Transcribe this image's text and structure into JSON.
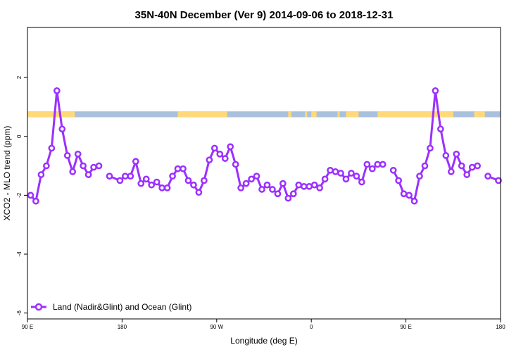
{
  "chart_data": {
    "type": "line",
    "title": "35N-40N December (Ver 9)   2014-09-06 to 2018-12-31",
    "xlabel": "Longitude (deg E)",
    "ylabel": "XCO2 - MLO trend (ppm)",
    "xlim": [
      90,
      540
    ],
    "ylim": [
      -6.2,
      3.7
    ],
    "x_ticks": [
      {
        "value": 90,
        "label": "90 E"
      },
      {
        "value": 180,
        "label": "180"
      },
      {
        "value": 270,
        "label": "90 W"
      },
      {
        "value": 360,
        "label": "0"
      },
      {
        "value": 450,
        "label": "90 E"
      },
      {
        "value": 540,
        "label": "180"
      }
    ],
    "y_ticks": [
      {
        "value": 2,
        "label": "2"
      },
      {
        "value": 0,
        "label": "0"
      },
      {
        "value": -2,
        "label": "-2"
      },
      {
        "value": -4,
        "label": "-4"
      },
      {
        "value": -6,
        "label": "-6"
      }
    ],
    "legend": {
      "position": "bottom-left"
    },
    "series": [
      {
        "name": "Land (Nadir&Glint) and Ocean (Glint)",
        "color": "#9b30ff",
        "segments": [
          [
            [
              93,
              -2.0
            ],
            [
              98,
              -2.2
            ],
            [
              103,
              -1.3
            ],
            [
              108,
              -1.0
            ],
            [
              113,
              -0.4
            ],
            [
              118,
              1.55
            ],
            [
              123,
              0.25
            ],
            [
              128,
              -0.65
            ],
            [
              133,
              -1.2
            ],
            [
              138,
              -0.6
            ],
            [
              143,
              -1.0
            ],
            [
              148,
              -1.3
            ],
            [
              153,
              -1.05
            ],
            [
              158,
              -1.0
            ]
          ],
          [
            [
              168,
              -1.35
            ],
            [
              178,
              -1.5
            ],
            [
              183,
              -1.35
            ],
            [
              188,
              -1.35
            ],
            [
              193,
              -0.85
            ],
            [
              198,
              -1.6
            ],
            [
              203,
              -1.45
            ],
            [
              208,
              -1.65
            ],
            [
              213,
              -1.55
            ],
            [
              218,
              -1.75
            ],
            [
              223,
              -1.75
            ],
            [
              228,
              -1.35
            ],
            [
              233,
              -1.1
            ],
            [
              238,
              -1.1
            ],
            [
              243,
              -1.5
            ],
            [
              248,
              -1.65
            ],
            [
              253,
              -1.9
            ],
            [
              258,
              -1.5
            ],
            [
              263,
              -0.8
            ],
            [
              268,
              -0.4
            ],
            [
              273,
              -0.6
            ],
            [
              278,
              -0.75
            ],
            [
              283,
              -0.35
            ],
            [
              288,
              -0.95
            ],
            [
              293,
              -1.75
            ],
            [
              298,
              -1.6
            ],
            [
              303,
              -1.45
            ],
            [
              308,
              -1.35
            ],
            [
              313,
              -1.8
            ],
            [
              318,
              -1.65
            ],
            [
              323,
              -1.8
            ],
            [
              328,
              -1.95
            ],
            [
              333,
              -1.6
            ],
            [
              338,
              -2.1
            ],
            [
              343,
              -1.95
            ],
            [
              348,
              -1.65
            ],
            [
              353,
              -1.7
            ],
            [
              358,
              -1.7
            ],
            [
              363,
              -1.65
            ],
            [
              368,
              -1.75
            ],
            [
              373,
              -1.45
            ],
            [
              378,
              -1.15
            ],
            [
              383,
              -1.2
            ],
            [
              388,
              -1.25
            ],
            [
              393,
              -1.45
            ],
            [
              398,
              -1.25
            ],
            [
              403,
              -1.35
            ],
            [
              408,
              -1.55
            ],
            [
              413,
              -0.95
            ],
            [
              418,
              -1.1
            ],
            [
              423,
              -0.95
            ],
            [
              428,
              -0.95
            ]
          ],
          [
            [
              438,
              -1.15
            ],
            [
              443,
              -1.5
            ],
            [
              448,
              -1.95
            ],
            [
              453,
              -2.0
            ],
            [
              458,
              -2.2
            ],
            [
              463,
              -1.35
            ],
            [
              468,
              -1.0
            ],
            [
              473,
              -0.4
            ],
            [
              478,
              1.55
            ],
            [
              483,
              0.25
            ],
            [
              488,
              -0.65
            ],
            [
              493,
              -1.2
            ],
            [
              498,
              -0.6
            ],
            [
              503,
              -1.0
            ],
            [
              508,
              -1.3
            ],
            [
              513,
              -1.05
            ],
            [
              518,
              -1.0
            ]
          ],
          [
            [
              528,
              -1.35
            ],
            [
              538,
              -1.5
            ]
          ]
        ]
      }
    ],
    "surface_strip": {
      "y_range": [
        0.65,
        0.85
      ],
      "land_color": "#ffd97a",
      "ocean_color": "#a9c1dd",
      "land_spans": [
        [
          90,
          135
        ],
        [
          233,
          280
        ],
        [
          338,
          341
        ],
        [
          354,
          356
        ],
        [
          360,
          365
        ],
        [
          385,
          387
        ],
        [
          393,
          405
        ],
        [
          423,
          495
        ],
        [
          515,
          525
        ]
      ]
    }
  }
}
